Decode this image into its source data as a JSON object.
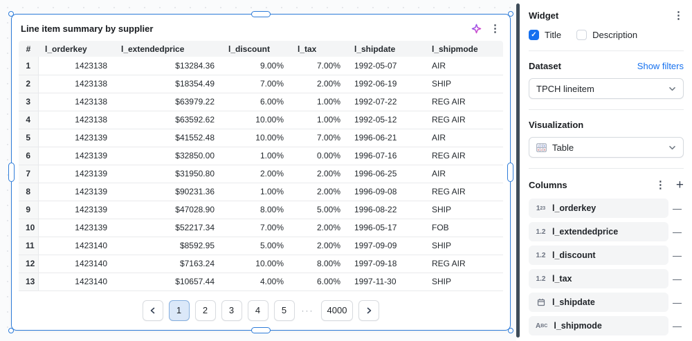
{
  "colors": {
    "selection_blue": "#2e7cd9",
    "accent_blue": "#1570ef",
    "active_page_bg": "#dbe8f9",
    "scrollbar_dark": "#3e4c59",
    "table_header_bg": "#f4f5f6"
  },
  "icons": {
    "kebab": "⋮",
    "plus": "+",
    "minus": "—",
    "check": "✓",
    "ellipsis": "···",
    "sparkle": "ai-sparkle-icon",
    "chevron_down": "chevron-down-icon"
  },
  "widget": {
    "title": "Line item summary by supplier",
    "table": {
      "columns": [
        {
          "key": "index",
          "label": "#",
          "align": "c"
        },
        {
          "key": "l_orderkey",
          "label": "l_orderkey",
          "align": "r"
        },
        {
          "key": "l_extendedprice",
          "label": "l_extendedprice",
          "align": "r"
        },
        {
          "key": "l_discount",
          "label": "l_discount",
          "align": "r"
        },
        {
          "key": "l_tax",
          "label": "l_tax",
          "align": "r"
        },
        {
          "key": "l_shipdate",
          "label": "l_shipdate",
          "align": "l"
        },
        {
          "key": "l_shipmode",
          "label": "l_shipmode",
          "align": "l"
        }
      ],
      "rows": [
        [
          "1",
          "1423138",
          "$13284.36",
          "9.00%",
          "7.00%",
          "1992-05-07",
          "AIR"
        ],
        [
          "2",
          "1423138",
          "$18354.49",
          "7.00%",
          "2.00%",
          "1992-06-19",
          "SHIP"
        ],
        [
          "3",
          "1423138",
          "$63979.22",
          "6.00%",
          "1.00%",
          "1992-07-22",
          "REG AIR"
        ],
        [
          "4",
          "1423138",
          "$63592.62",
          "10.00%",
          "1.00%",
          "1992-05-12",
          "REG AIR"
        ],
        [
          "5",
          "1423139",
          "$41552.48",
          "10.00%",
          "7.00%",
          "1996-06-21",
          "AIR"
        ],
        [
          "6",
          "1423139",
          "$32850.00",
          "1.00%",
          "0.00%",
          "1996-07-16",
          "REG AIR"
        ],
        [
          "7",
          "1423139",
          "$31950.80",
          "2.00%",
          "2.00%",
          "1996-06-25",
          "AIR"
        ],
        [
          "8",
          "1423139",
          "$90231.36",
          "1.00%",
          "2.00%",
          "1996-09-08",
          "REG AIR"
        ],
        [
          "9",
          "1423139",
          "$47028.90",
          "8.00%",
          "5.00%",
          "1996-08-22",
          "SHIP"
        ],
        [
          "10",
          "1423139",
          "$52217.34",
          "7.00%",
          "2.00%",
          "1996-05-17",
          "FOB"
        ],
        [
          "11",
          "1423140",
          "$8592.95",
          "5.00%",
          "2.00%",
          "1997-09-09",
          "SHIP"
        ],
        [
          "12",
          "1423140",
          "$7163.24",
          "10.00%",
          "8.00%",
          "1997-09-18",
          "REG AIR"
        ],
        [
          "13",
          "1423140",
          "$10657.44",
          "4.00%",
          "6.00%",
          "1997-11-30",
          "SHIP"
        ]
      ]
    },
    "pagination": {
      "pages": [
        "1",
        "2",
        "3",
        "4",
        "5"
      ],
      "active_page": "1",
      "last_page": "4000"
    }
  },
  "panel": {
    "widget_section": {
      "heading": "Widget",
      "title_label": "Title",
      "title_checked": true,
      "description_label": "Description",
      "description_checked": false
    },
    "dataset_section": {
      "heading": "Dataset",
      "link": "Show filters",
      "selected": "TPCH lineitem"
    },
    "visualization_section": {
      "heading": "Visualization",
      "selected": "Table"
    },
    "columns_section": {
      "heading": "Columns",
      "items": [
        {
          "type": "integer",
          "label": "l_orderkey"
        },
        {
          "type": "decimal",
          "label": "l_extendedprice"
        },
        {
          "type": "decimal",
          "label": "l_discount"
        },
        {
          "type": "decimal",
          "label": "l_tax"
        },
        {
          "type": "date",
          "label": "l_shipdate"
        },
        {
          "type": "text",
          "label": "l_shipmode"
        }
      ]
    }
  }
}
